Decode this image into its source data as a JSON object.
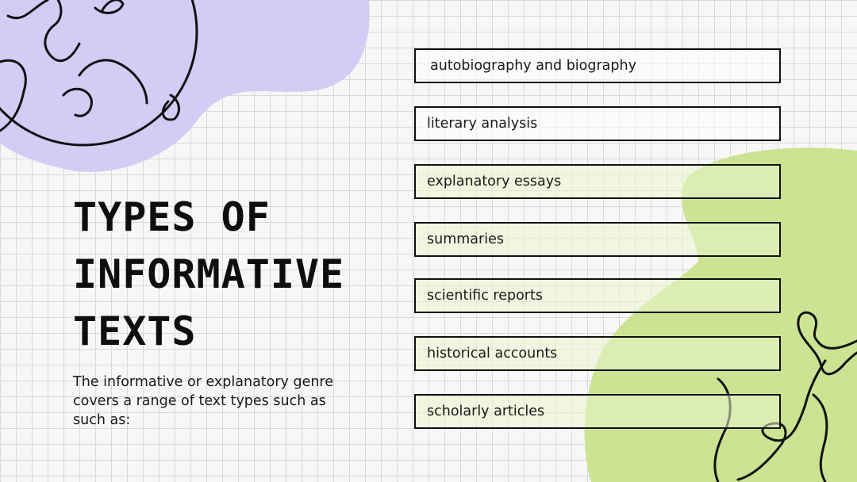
{
  "slide": {
    "title_lines": [
      "TYPES OF",
      "INFORMATIVE",
      "TEXTS"
    ],
    "description": "The informative or explanatory genre covers a range of text types such as such as:",
    "items": [
      {
        "label": "autobiography and biography"
      },
      {
        "label": "literary analysis"
      },
      {
        "label": "explanatory essays"
      },
      {
        "label": "summaries"
      },
      {
        "label": "scientific reports"
      },
      {
        "label": "historical accounts"
      },
      {
        "label": "scholarly articles"
      }
    ]
  },
  "colors": {
    "lavender_blob": "#d3ccf5",
    "green_blob": "#cbe392",
    "ink": "#111111",
    "grid_line": "#d9d9d9"
  },
  "icons": [
    "globe-doodle-icon",
    "dog-doodle-icon"
  ]
}
